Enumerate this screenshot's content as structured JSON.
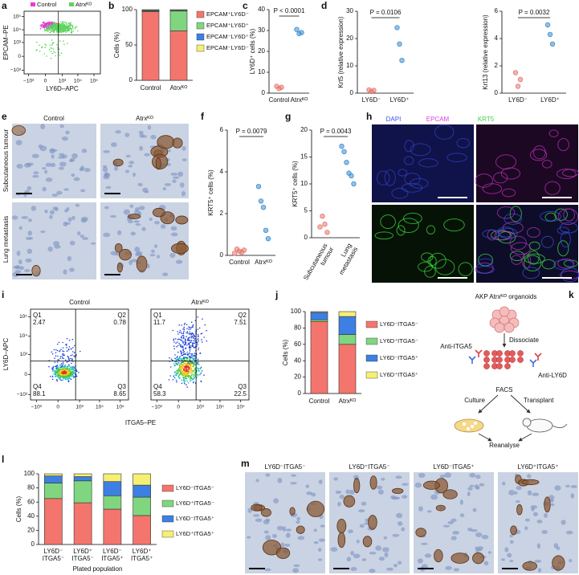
{
  "chart_data": [
    {
      "type": "flow",
      "label": "a",
      "xlabel": "LY6D–APC",
      "ylabel": "EPCAM–PE",
      "series": [
        {
          "name": "Control",
          "color": "#e83ad6"
        },
        {
          "name": "Atrxᴷᴼ",
          "color": "#5fd35f"
        }
      ],
      "xlim": [
        -2000,
        250000
      ],
      "ylim": [
        -2000,
        250000
      ],
      "xticks": [
        {
          "value": -1000,
          "label": "−10³"
        },
        0,
        {
          "value": 1000,
          "label": "10³"
        },
        {
          "value": 10000,
          "label": "10⁴"
        },
        {
          "value": 100000,
          "label": "10⁵"
        }
      ],
      "yticks": [
        {
          "value": -1000,
          "label": "−10³"
        },
        0,
        {
          "value": 1000,
          "label": "10³"
        },
        {
          "value": 10000,
          "label": "10⁴"
        },
        {
          "value": 100000,
          "label": "10⁵"
        }
      ]
    },
    {
      "type": "stacked_bar",
      "label": "b",
      "ylabel": "Cells (%)",
      "categories": [
        "Control",
        "Atrxᴷᴼ"
      ],
      "series": [
        {
          "name": "EPCAM⁺LY6D⁻",
          "color": "#f4756d",
          "values": [
            97,
            70
          ]
        },
        {
          "name": "EPCAM⁺LY6D⁺",
          "color": "#7fd67f",
          "values": [
            1,
            28
          ]
        },
        {
          "name": "EPCAM⁻LY6D⁺",
          "color": "#3d7fe3",
          "values": [
            1,
            1
          ]
        },
        {
          "name": "EPCAM⁻LY6D⁻",
          "color": "#f5ef74",
          "values": [
            1,
            1
          ]
        }
      ],
      "ylim": [
        0,
        100
      ],
      "yticks": [
        0,
        50,
        100
      ]
    },
    {
      "type": "dot",
      "label": "c",
      "ylabel": "LY6D⁺ cells (%)",
      "categories": [
        "Control",
        "Atrxᴷᴼ"
      ],
      "values": [
        [
          3.3,
          2.2,
          2.8
        ],
        [
          30.5,
          28.5,
          29
        ]
      ],
      "colors": [
        "#e8756e",
        "#3b8ed0"
      ],
      "ylim": [
        0,
        40
      ],
      "yticks": [
        0,
        10,
        20,
        30,
        40
      ],
      "annotation": "P < 0.0001"
    },
    {
      "type": "dot",
      "label": "d",
      "ylabel": "Krt5 (relative expression)",
      "categories": [
        "LY6D⁻",
        "LY6D⁺"
      ],
      "values": [
        [
          1.2,
          0.6,
          1.0
        ],
        [
          24,
          18,
          12
        ]
      ],
      "colors": [
        "#e8756e",
        "#3b8ed0"
      ],
      "ylim": [
        0,
        30
      ],
      "yticks": [
        0,
        10,
        20,
        30
      ],
      "annotation": "P = 0.0106"
    },
    {
      "type": "dot",
      "ylabel": "Krt13 (relative expression)",
      "categories": [
        "LY6D⁻",
        "LY6D⁺"
      ],
      "values": [
        [
          1.5,
          0.5,
          1.0
        ],
        [
          5,
          4.3,
          3.6
        ]
      ],
      "colors": [
        "#e8756e",
        "#3b8ed0"
      ],
      "ylim": [
        0,
        6
      ],
      "yticks": [
        0,
        2,
        4,
        6
      ],
      "annotation": "P = 0.0032"
    },
    {
      "type": "dot",
      "label": "f",
      "ylabel": "KRT5⁺ cells (%)",
      "categories": [
        "Control",
        "Atrxᴷᴼ"
      ],
      "values": [
        [
          0.1,
          0.3,
          0.2,
          0.15,
          0.25
        ],
        [
          3.3,
          2.6,
          2.3,
          1.2,
          0.8
        ]
      ],
      "colors": [
        "#e8756e",
        "#3b8ed0"
      ],
      "ylim": [
        0,
        6
      ],
      "yticks": [
        0,
        2,
        4,
        6
      ],
      "annotation": "P = 0.0079"
    },
    {
      "type": "dot",
      "label": "g",
      "ylabel": "KRT5⁺ cells (%)",
      "categories": [
        [
          "Subcutaneous",
          "tumour"
        ],
        [
          "Lung",
          "metastasis"
        ]
      ],
      "values": [
        [
          2,
          4,
          2.5,
          1
        ],
        [
          17,
          16,
          14,
          12,
          11.5,
          10
        ]
      ],
      "colors": [
        "#e8756e",
        "#3b8ed0"
      ],
      "ylim": [
        0,
        20
      ],
      "yticks": [
        0,
        5,
        10,
        15,
        20
      ],
      "annotation": "P = 0.0043"
    },
    {
      "type": "flow_quadrant",
      "label": "i",
      "xlabel": "ITGA5–PE",
      "ylabel": "LY6D–APC",
      "xlim": [
        -2000,
        250000
      ],
      "ylim": [
        -2000,
        250000
      ],
      "xticks": [
        {
          "value": -1000,
          "label": "−10³"
        },
        0,
        {
          "value": 1000,
          "label": "10³"
        },
        {
          "value": 10000,
          "label": "10⁴"
        },
        {
          "value": 100000,
          "label": "10⁵"
        }
      ],
      "yticks": [
        {
          "value": -1000,
          "label": "−10³"
        },
        0,
        {
          "value": 1000,
          "label": "10³"
        },
        {
          "value": 10000,
          "label": "10⁴"
        },
        {
          "value": 100000,
          "label": "10⁵"
        }
      ],
      "panels": [
        {
          "title": "Control",
          "quadrants": [
            {
              "name": "Q1",
              "value": 2.47
            },
            {
              "name": "Q2",
              "value": 0.78
            },
            {
              "name": "Q3",
              "value": 8.65
            },
            {
              "name": "Q4",
              "value": 88.1
            }
          ]
        },
        {
          "title": "Atrxᴷᴼ",
          "quadrants": [
            {
              "name": "Q1",
              "value": 11.7
            },
            {
              "name": "Q2",
              "value": 7.51
            },
            {
              "name": "Q3",
              "value": 22.5
            },
            {
              "name": "Q4",
              "value": 58.3
            }
          ]
        }
      ]
    },
    {
      "type": "stacked_bar",
      "label": "j",
      "ylabel": "Cells (%)",
      "categories": [
        "Control",
        "Atrxᴷᴼ"
      ],
      "series": [
        {
          "name": "LY6D⁻ITGA5⁻",
          "color": "#f4756d",
          "values": [
            88,
            60
          ]
        },
        {
          "name": "LY6D⁺ITGA5⁻",
          "color": "#7fd67f",
          "values": [
            2,
            12
          ]
        },
        {
          "name": "LY6D⁻ITGA5⁺",
          "color": "#3d7fe3",
          "values": [
            9,
            22
          ]
        },
        {
          "name": "LY6D⁺ITGA5⁺",
          "color": "#f5ef74",
          "values": [
            1,
            6
          ]
        }
      ],
      "ylim": [
        0,
        100
      ],
      "yticks": [
        0,
        20,
        40,
        60,
        80,
        100
      ]
    },
    {
      "type": "stacked_bar",
      "label": "l",
      "ylabel": "Cells (%)",
      "xlabel": "Plated population",
      "categories": [
        [
          "LY6D⁻",
          "ITGA5⁻"
        ],
        [
          "LY6D⁺",
          "ITGA5⁻"
        ],
        [
          "LY6D⁻",
          "ITGA5⁺"
        ],
        [
          "LY6D⁺",
          "ITGA5⁺"
        ]
      ],
      "series": [
        {
          "name": "LY6D⁻ITGA5⁻",
          "color": "#f4756d",
          "values": [
            65,
            59,
            50,
            41
          ]
        },
        {
          "name": "LY6D⁺ITGA5⁻",
          "color": "#7fd67f",
          "values": [
            22,
            31,
            19,
            26
          ]
        },
        {
          "name": "LY6D⁻ITGA5⁺",
          "color": "#3d7fe3",
          "values": [
            10,
            6,
            20,
            17
          ]
        },
        {
          "name": "LY6D⁺ITGA5⁺",
          "color": "#f5ef74",
          "values": [
            3,
            4,
            11,
            16
          ]
        }
      ],
      "ylim": [
        0,
        100
      ],
      "yticks": [
        0,
        20,
        40,
        60,
        80,
        100
      ]
    }
  ],
  "panel_e": {
    "label": "e",
    "columns": [
      "Control",
      "Atrxᴷᴼ"
    ],
    "rows": [
      "Subcutaneous tumour",
      "Lung  metastasis"
    ]
  },
  "panel_h": {
    "label": "h",
    "channels": [
      "DAPI",
      "EPCAM",
      "KRT5"
    ]
  },
  "panel_k": {
    "label": "k",
    "title": "AKP Atrxᴷᴼ organoids",
    "dissociate": "Dissociate",
    "anti_itga5": "Anti-ITGA5",
    "anti_ly6d": "Anti-LY6D",
    "facs": "FACS",
    "culture": "Culture",
    "transplant": "Transplant",
    "reanalyse": "Reanalyse"
  },
  "panel_m": {
    "label": "m",
    "titles": [
      "LY6D⁻ITGA5⁻",
      "LY6D⁺ITGA5⁻",
      "LY6D⁻ITGA5⁺",
      "LY6D⁺ITGA5⁺"
    ]
  }
}
